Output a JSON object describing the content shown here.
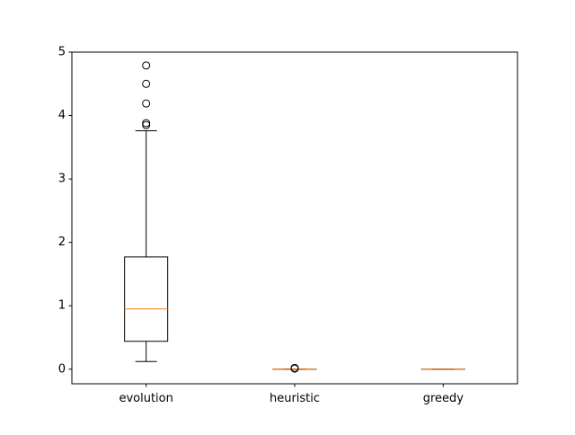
{
  "chart_data": {
    "type": "box",
    "title": "",
    "xlabel": "",
    "ylabel": "",
    "ylim": [
      -0.23,
      5.0
    ],
    "yticks": [
      0,
      1,
      2,
      3,
      4,
      5
    ],
    "ytick_labels": [
      "0",
      "1",
      "2",
      "3",
      "4",
      "5"
    ],
    "categories": [
      "evolution",
      "heuristic",
      "greedy"
    ],
    "boxes": [
      {
        "name": "evolution",
        "whisker_low": 0.12,
        "q1": 0.44,
        "median": 0.95,
        "q3": 1.77,
        "whisker_high": 3.76,
        "outliers": [
          3.85,
          3.88,
          4.19,
          4.5,
          4.79
        ]
      },
      {
        "name": "heuristic",
        "whisker_low": 0.0,
        "q1": 0.0,
        "median": 0.0,
        "q3": 0.0,
        "whisker_high": 0.0,
        "outliers": [
          0.01,
          0.02
        ]
      },
      {
        "name": "greedy",
        "whisker_low": 0.0,
        "q1": 0.0,
        "median": 0.0,
        "q3": 0.0,
        "whisker_high": 0.0,
        "outliers": []
      }
    ],
    "colors": {
      "box": "#000000",
      "median": "#ff7f0e",
      "outlier": "#000000",
      "frame": "#000000",
      "background": "#ffffff"
    }
  }
}
